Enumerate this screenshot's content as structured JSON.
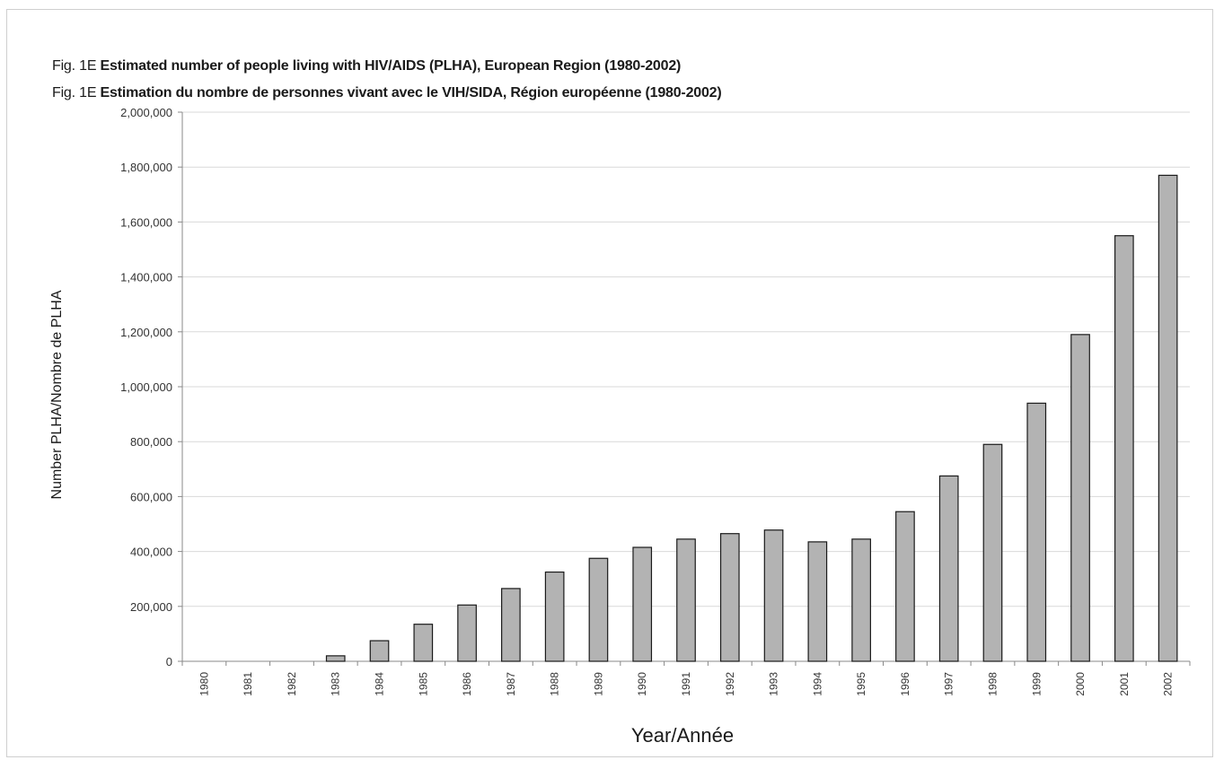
{
  "header": {
    "fig_label_en": "Fig. 1E",
    "title_en": "Estimated number of people living with HIV/AIDS (PLHA), European Region (1980-2002)",
    "fig_label_fr": "Fig. 1E",
    "title_fr": "Estimation du nombre de personnes vivant avec le VIH/SIDA, Région européenne (1980-2002)"
  },
  "colors": {
    "bar_fill": "#b3b3b3",
    "bar_stroke": "#1a1a1a",
    "grid": "#d9d9d9",
    "axis": "#888888"
  },
  "chart_data": {
    "type": "bar",
    "title": "Estimated number of people living with HIV/AIDS (PLHA), European Region (1980-2002)",
    "xlabel": "Year/Année",
    "ylabel": "Number PLHA/Nombre de PLHA",
    "ylim": [
      0,
      2000000
    ],
    "yticks": [
      0,
      200000,
      400000,
      600000,
      800000,
      1000000,
      1200000,
      1400000,
      1600000,
      1800000,
      2000000
    ],
    "ytick_labels": [
      "0",
      "200,000",
      "400,000",
      "600,000",
      "800,000",
      "1,000,000",
      "1,200,000",
      "1,400,000",
      "1,600,000",
      "1,800,000",
      "2,000,000"
    ],
    "grid": true,
    "legend": "none",
    "categories": [
      "1980",
      "1981",
      "1982",
      "1983",
      "1984",
      "1985",
      "1986",
      "1987",
      "1988",
      "1989",
      "1990",
      "1991",
      "1992",
      "1993",
      "1994",
      "1995",
      "1996",
      "1997",
      "1998",
      "1999",
      "2000",
      "2001",
      "2002"
    ],
    "values": [
      0,
      0,
      0,
      20000,
      75000,
      135000,
      205000,
      265000,
      325000,
      375000,
      415000,
      445000,
      465000,
      478000,
      435000,
      445000,
      545000,
      675000,
      790000,
      940000,
      1190000,
      1550000,
      1770000
    ]
  }
}
